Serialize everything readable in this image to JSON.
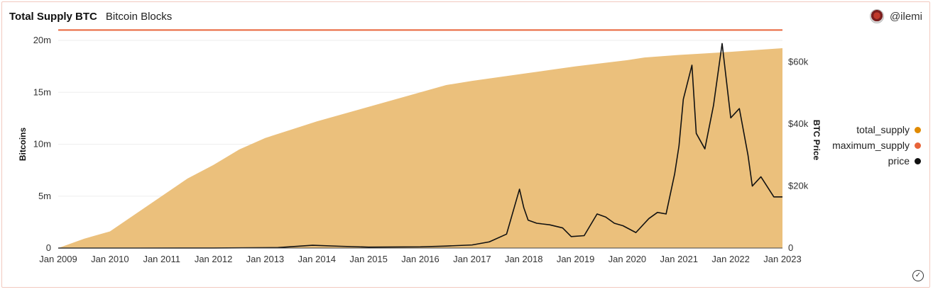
{
  "header": {
    "title": "Total Supply BTC",
    "subtitle": "Bitcoin Blocks",
    "author": "@ilemi"
  },
  "legend": [
    {
      "label": "total_supply",
      "color": "#e08a00"
    },
    {
      "label": "maximum_supply",
      "color": "#e8643a"
    },
    {
      "label": "price",
      "color": "#111111"
    }
  ],
  "icons": {
    "avatar": "user-avatar",
    "status": "check-circle-icon"
  },
  "chart_data": {
    "type": "area",
    "x_ticks": [
      "Jan 2009",
      "Jan 2010",
      "Jan 2011",
      "Jan 2012",
      "Jan 2013",
      "Jan 2014",
      "Jan 2015",
      "Jan 2016",
      "Jan 2017",
      "Jan 2018",
      "Jan 2019",
      "Jan 2020",
      "Jan 2021",
      "Jan 2022",
      "Jan 2023"
    ],
    "xlim": [
      "2009-01",
      "2023-01"
    ],
    "ylabel": "Bitcoins",
    "y_ticks": [
      "0",
      "5m",
      "10m",
      "15m",
      "20m"
    ],
    "ylim": [
      0,
      20000000
    ],
    "y2label": "BTC Price",
    "y2_ticks": [
      "0",
      "$20k",
      "$40k",
      "$60k"
    ],
    "y2lim": [
      0,
      67000
    ],
    "grid": true,
    "legend_position": "right",
    "series": [
      {
        "name": "total_supply",
        "axis": "left",
        "color": "#ebc07c",
        "x": [
          "2009-01",
          "2009-07",
          "2010-01",
          "2010-07",
          "2011-01",
          "2011-07",
          "2012-01",
          "2012-07",
          "2013-01",
          "2013-07",
          "2014-01",
          "2014-07",
          "2015-01",
          "2015-07",
          "2016-01",
          "2016-07",
          "2017-01",
          "2017-07",
          "2018-01",
          "2018-07",
          "2019-01",
          "2019-07",
          "2020-01",
          "2020-05",
          "2021-01",
          "2021-07",
          "2022-01",
          "2022-07",
          "2023-01"
        ],
        "values": [
          0,
          900000,
          1600000,
          3300000,
          5000000,
          6700000,
          8000000,
          9500000,
          10600000,
          11400000,
          12200000,
          12900000,
          13600000,
          14300000,
          15000000,
          15700000,
          16100000,
          16450000,
          16800000,
          17150000,
          17500000,
          17800000,
          18100000,
          18350000,
          18600000,
          18750000,
          18900000,
          19080000,
          19250000
        ]
      },
      {
        "name": "maximum_supply",
        "axis": "left",
        "color": "#e8643a",
        "x": [
          "2009-01",
          "2023-01"
        ],
        "values": [
          21000000,
          21000000
        ]
      },
      {
        "name": "price",
        "axis": "right",
        "color": "#111111",
        "x": [
          "2009-01",
          "2010-07",
          "2011-06",
          "2012-01",
          "2013-04",
          "2013-12",
          "2014-06",
          "2015-01",
          "2016-01",
          "2016-07",
          "2017-01",
          "2017-05",
          "2017-09",
          "2017-12",
          "2018-01",
          "2018-02",
          "2018-04",
          "2018-07",
          "2018-10",
          "2018-12",
          "2019-03",
          "2019-06",
          "2019-08",
          "2019-10",
          "2019-12",
          "2020-03",
          "2020-06",
          "2020-08",
          "2020-10",
          "2020-12",
          "2021-01",
          "2021-02",
          "2021-04",
          "2021-05",
          "2021-07",
          "2021-09",
          "2021-11",
          "2022-01",
          "2022-03",
          "2022-05",
          "2022-06",
          "2022-08",
          "2022-11",
          "2023-01"
        ],
        "values": [
          0,
          0,
          20,
          5,
          150,
          900,
          600,
          300,
          400,
          650,
          1000,
          2000,
          4500,
          19000,
          13000,
          9000,
          8000,
          7500,
          6500,
          3700,
          4000,
          11000,
          10000,
          8000,
          7200,
          5000,
          9500,
          11500,
          11000,
          24000,
          33000,
          48000,
          59000,
          37000,
          32000,
          46000,
          66000,
          42000,
          45000,
          30000,
          20000,
          23000,
          16500,
          16500
        ]
      }
    ]
  }
}
